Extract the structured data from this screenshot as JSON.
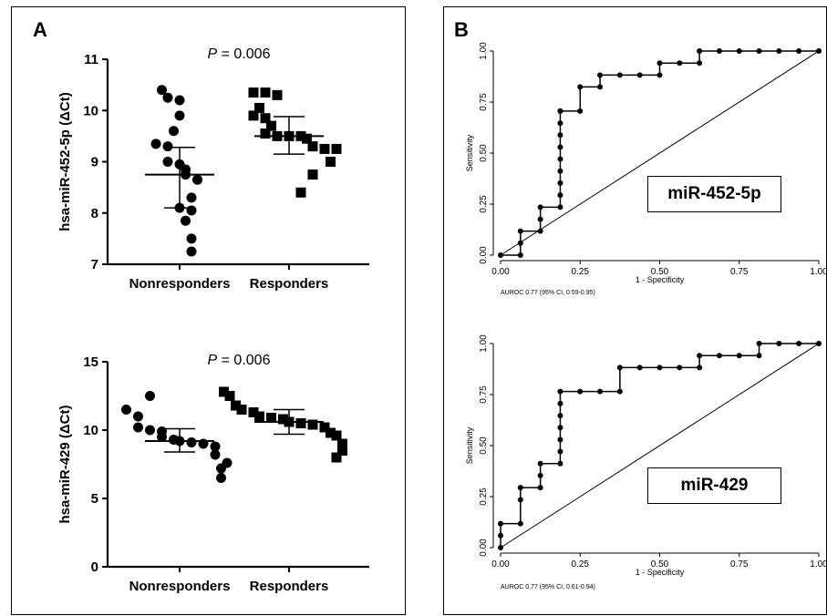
{
  "panel_labels": {
    "a": "A",
    "b": "B"
  },
  "roc_labels": [
    "miR-452-5p",
    "miR-429"
  ],
  "chart_data": [
    {
      "panel": "A",
      "type": "scatter",
      "title": "P = 0.006",
      "title_italic": "P",
      "title_rest": " = 0.006",
      "ylabel": "hsa-miR-452-5p (ΔCt)",
      "ylim": [
        7,
        11
      ],
      "yticks": [
        7,
        8,
        9,
        10,
        11
      ],
      "categories": [
        "Nonresponders",
        "Responders"
      ],
      "series": [
        {
          "name": "Nonresponders",
          "marker": "circle",
          "values": [
            10.4,
            10.25,
            10.2,
            9.9,
            9.6,
            9.35,
            9.3,
            9.0,
            8.95,
            8.85,
            8.75,
            8.65,
            8.3,
            8.1,
            8.05,
            7.85,
            7.5,
            7.25
          ],
          "mean": 8.75,
          "sd_upper": 9.28,
          "sd_lower": 8.1
        },
        {
          "name": "Responders",
          "marker": "square",
          "values": [
            10.35,
            10.35,
            10.3,
            10.05,
            9.9,
            9.85,
            9.7,
            9.55,
            9.5,
            9.5,
            9.5,
            9.45,
            9.3,
            9.25,
            9.25,
            9.0,
            8.75,
            8.4
          ],
          "mean": 9.5,
          "sd_upper": 9.88,
          "sd_lower": 9.15
        }
      ]
    },
    {
      "panel": "A",
      "type": "scatter",
      "title": "P = 0.006",
      "title_italic": "P",
      "title_rest": " = 0.006",
      "ylabel": "hsa-miR-429 (ΔCt)",
      "ylim": [
        0,
        15
      ],
      "yticks": [
        0,
        5,
        10,
        15
      ],
      "categories": [
        "Nonresponders",
        "Responders"
      ],
      "series": [
        {
          "name": "Nonresponders",
          "marker": "circle",
          "values": [
            12.5,
            11.5,
            11.0,
            10.2,
            10.0,
            9.9,
            9.5,
            9.3,
            9.2,
            9.1,
            9.0,
            8.8,
            8.2,
            7.6,
            7.2,
            6.5
          ],
          "mean": 9.2,
          "sd_upper": 10.1,
          "sd_lower": 8.4
        },
        {
          "name": "Responders",
          "marker": "square",
          "values": [
            12.8,
            12.5,
            11.8,
            11.5,
            11.3,
            11.0,
            10.9,
            10.8,
            10.6,
            10.5,
            10.4,
            10.2,
            9.8,
            9.6,
            9.0,
            8.5,
            8.0
          ],
          "mean": 10.6,
          "sd_upper": 11.5,
          "sd_lower": 9.7
        }
      ]
    },
    {
      "panel": "B",
      "type": "line",
      "title": "miR-452-5p",
      "xlabel": "1 - Specificity",
      "ylabel": "Sensitivity",
      "xlim": [
        0,
        1
      ],
      "ylim": [
        0,
        1
      ],
      "ticks": [
        "0.00",
        "0.25",
        "0.50",
        "0.75",
        "1.00"
      ],
      "footnote": "AUROC 0.77 (95% CI, 0.59-0.95)",
      "x": [
        0,
        0.0625,
        0.0625,
        0.0625,
        0.125,
        0.125,
        0.125,
        0.1875,
        0.1875,
        0.1875,
        0.1875,
        0.1875,
        0.1875,
        0.1875,
        0.1875,
        0.1875,
        0.1875,
        0.25,
        0.25,
        0.3125,
        0.3125,
        0.375,
        0.4375,
        0.5,
        0.5,
        0.5625,
        0.625,
        0.625,
        0.6875,
        0.75,
        0.8125,
        0.875,
        0.9375,
        1.0
      ],
      "y": [
        0,
        0,
        0.059,
        0.118,
        0.118,
        0.176,
        0.235,
        0.235,
        0.294,
        0.353,
        0.412,
        0.471,
        0.529,
        0.588,
        0.647,
        0.706,
        0.706,
        0.706,
        0.824,
        0.824,
        0.882,
        0.882,
        0.882,
        0.882,
        0.941,
        0.941,
        0.941,
        1.0,
        1.0,
        1.0,
        1.0,
        1.0,
        1.0,
        1.0
      ]
    },
    {
      "panel": "B",
      "type": "line",
      "title": "miR-429",
      "xlabel": "1 - Specificity",
      "ylabel": "Sensitivity",
      "xlim": [
        0,
        1
      ],
      "ylim": [
        0,
        1
      ],
      "ticks": [
        "0.00",
        "0.25",
        "0.50",
        "0.75",
        "1.00"
      ],
      "footnote": "AUROC 0.77 (95% CI, 0.61-0.94)",
      "x": [
        0,
        0,
        0,
        0.0625,
        0.0625,
        0.0625,
        0.125,
        0.125,
        0.125,
        0.1875,
        0.1875,
        0.1875,
        0.1875,
        0.1875,
        0.1875,
        0.1875,
        0.25,
        0.3125,
        0.375,
        0.375,
        0.4375,
        0.5,
        0.5625,
        0.625,
        0.625,
        0.6875,
        0.75,
        0.8125,
        0.8125,
        0.875,
        0.9375,
        1.0
      ],
      "y": [
        0,
        0.059,
        0.118,
        0.118,
        0.235,
        0.294,
        0.294,
        0.353,
        0.412,
        0.412,
        0.471,
        0.529,
        0.588,
        0.647,
        0.706,
        0.765,
        0.765,
        0.765,
        0.765,
        0.882,
        0.882,
        0.882,
        0.882,
        0.882,
        0.941,
        0.941,
        0.941,
        0.941,
        1.0,
        1.0,
        1.0,
        1.0
      ]
    }
  ]
}
